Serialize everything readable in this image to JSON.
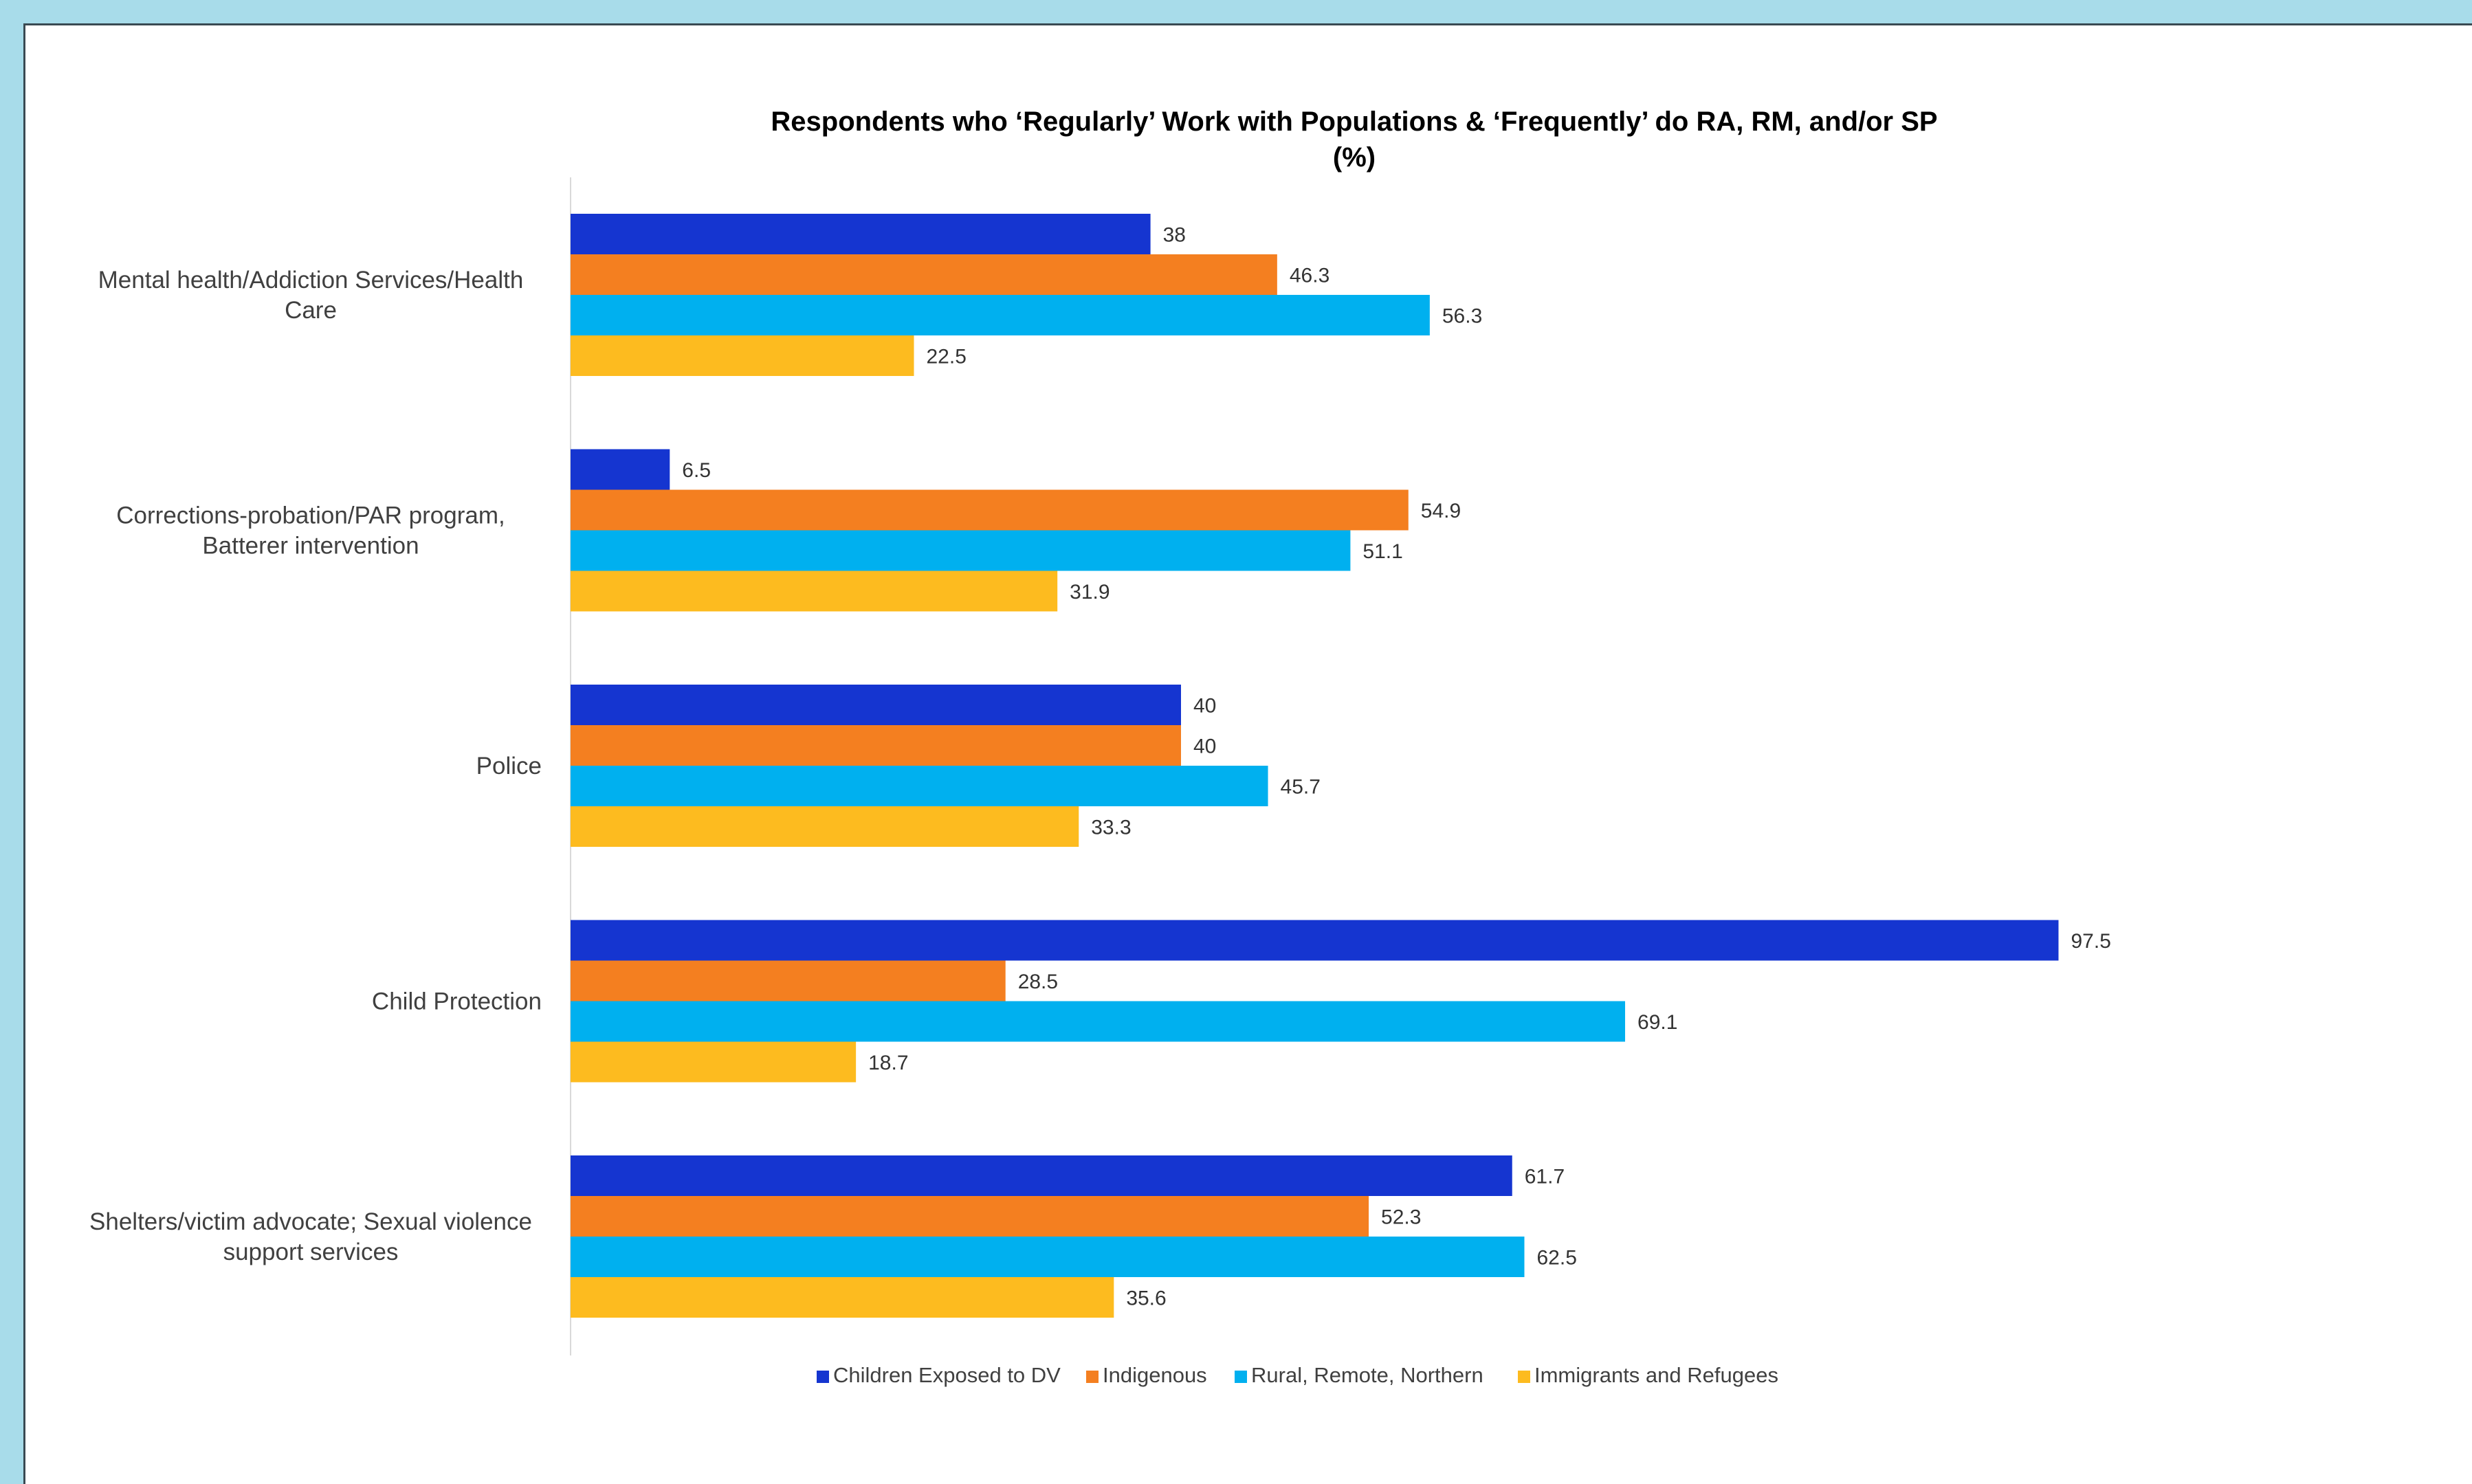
{
  "chart_data": {
    "type": "bar",
    "orientation": "horizontal",
    "title": "Respondents who ‘Regularly’ Work with Populations & ‘Frequently’ do RA, RM, and/or SP",
    "subtitle": "(%)",
    "categories": [
      [
        "Mental health/Addiction Services/Health",
        "Care"
      ],
      [
        "Corrections-probation/PAR program,",
        "Batterer intervention"
      ],
      [
        "Police"
      ],
      [
        "Child Protection"
      ],
      [
        "Shelters/victim advocate; Sexual violence",
        "support services"
      ]
    ],
    "series": [
      {
        "name": "Children Exposed to DV",
        "color": "#1535d0",
        "values": [
          38,
          6.5,
          40,
          97.5,
          61.7
        ]
      },
      {
        "name": "Indigenous",
        "color": "#f47f20",
        "values": [
          46.3,
          54.9,
          40,
          28.5,
          52.3
        ]
      },
      {
        "name": "Rural, Remote, Northern",
        "color": "#00b0ef",
        "values": [
          56.3,
          51.1,
          45.7,
          69.1,
          62.5
        ]
      },
      {
        "name": "Immigrants and Refugees",
        "color": "#fdbb1f",
        "values": [
          22.5,
          31.9,
          33.3,
          18.7,
          35.6
        ]
      }
    ],
    "xlim": [
      0,
      100
    ],
    "grid": false,
    "legend_position": "bottom",
    "data_labels": true
  },
  "colors": {
    "frame_background": "#a8dcea",
    "panel_background": "#ffffff",
    "axis_line": "#d9d9d9"
  }
}
